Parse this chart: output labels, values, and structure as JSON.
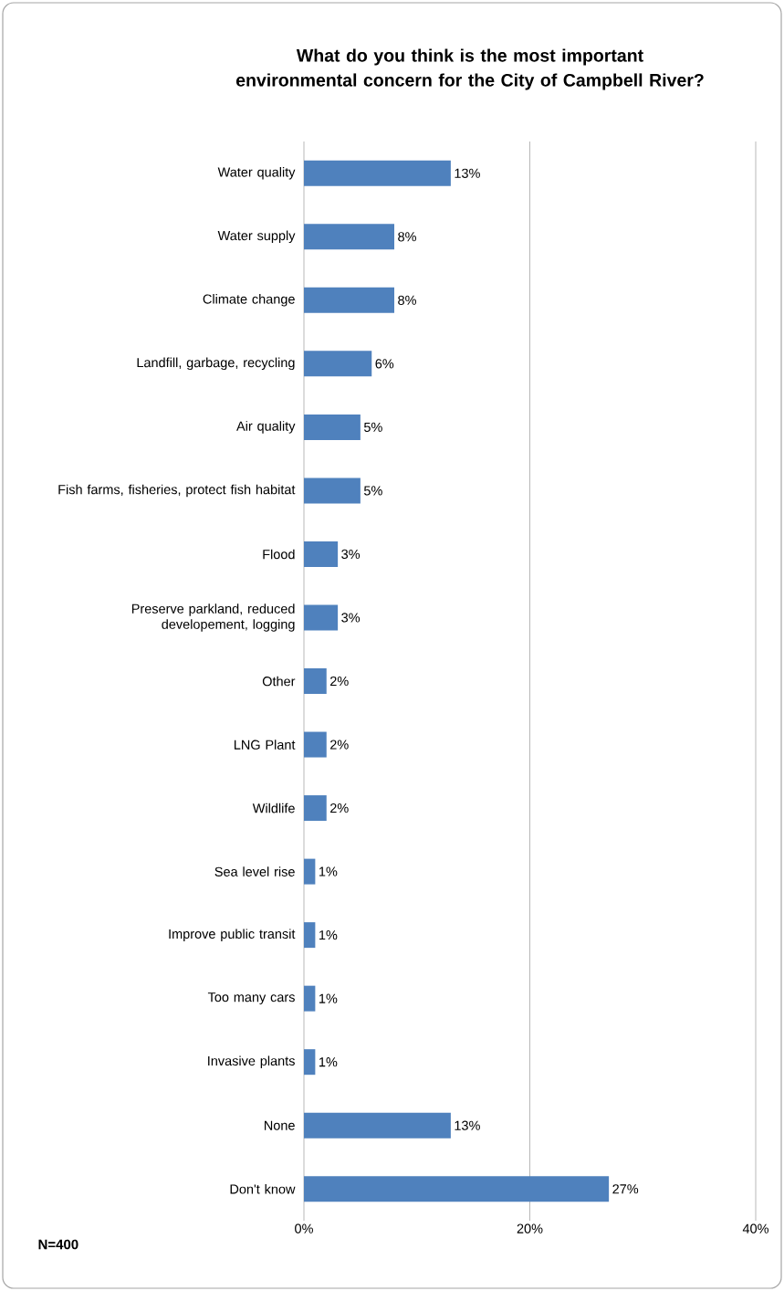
{
  "chart_data": {
    "type": "bar",
    "orientation": "horizontal",
    "title": "What do you think is the most important environmental concern for the City of Campbell River?",
    "categories": [
      "Water quality",
      "Water supply",
      "Climate change",
      "Landfill, garbage, recycling",
      "Air quality",
      "Fish farms, fisheries, protect fish habitat",
      "Flood",
      "Preserve parkland, reduced developement, logging",
      "Other",
      "LNG Plant",
      "Wildlife",
      "Sea level rise",
      "Improve public transit",
      "Too many cars",
      "Invasive plants",
      "None",
      "Don't know"
    ],
    "values": [
      13,
      8,
      8,
      6,
      5,
      5,
      3,
      3,
      2,
      2,
      2,
      1,
      1,
      1,
      1,
      13,
      27
    ],
    "value_labels": [
      "13%",
      "8%",
      "8%",
      "6%",
      "5%",
      "5%",
      "3%",
      "3%",
      "2%",
      "2%",
      "2%",
      "1%",
      "1%",
      "1%",
      "1%",
      "13%",
      "27%"
    ],
    "color": "#4f81bd",
    "xlim": [
      0,
      40
    ],
    "xticks": [
      {
        "value": 0,
        "label": "0%"
      },
      {
        "value": 20,
        "label": "20%"
      },
      {
        "value": 40,
        "label": "40%"
      }
    ],
    "grid": "x",
    "annotations": [
      "N=400"
    ]
  }
}
